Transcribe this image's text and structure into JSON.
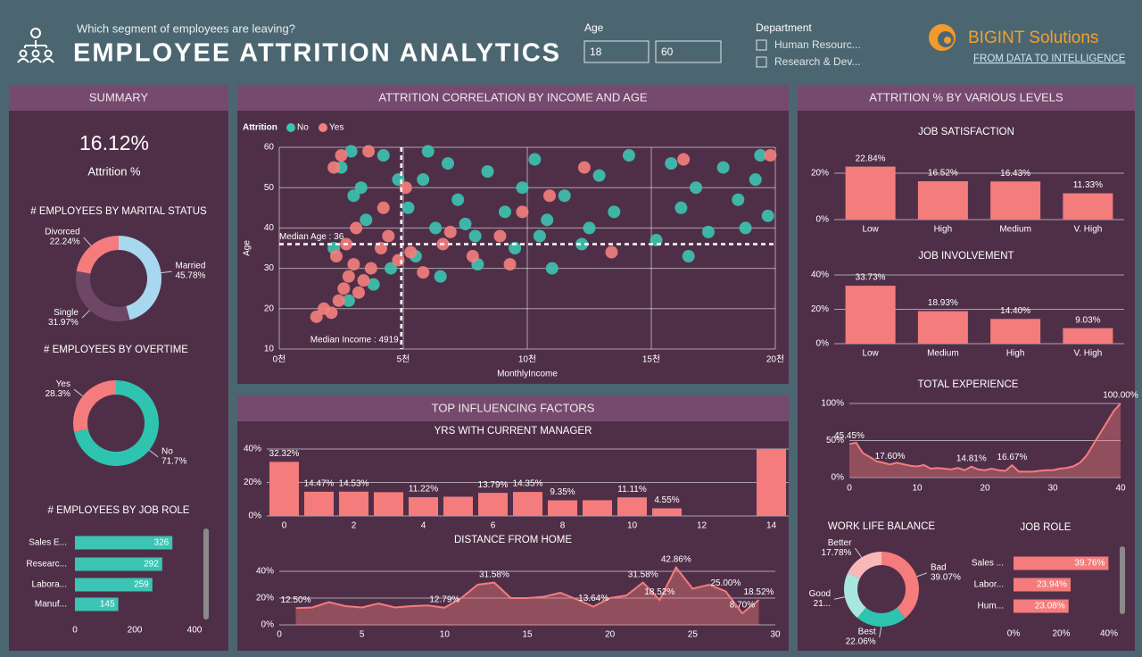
{
  "header": {
    "subtitle": "Which segment of employees are leaving?",
    "title": "EMPLOYEE ATTRITION ANALYTICS"
  },
  "filters": {
    "age": {
      "label": "Age",
      "min": 18,
      "max": 60
    },
    "department": {
      "label": "Department",
      "options": [
        "Human Resourc...",
        "Research & Dev..."
      ]
    }
  },
  "logo": {
    "name": "BIGINT Solutions",
    "tagline": "FROM DATA TO INTELLIGENCE"
  },
  "panels": {
    "summary": "SUMMARY",
    "correlation": "ATTRITION CORRELATION BY INCOME AND AGE",
    "factors": "TOP INFLUENCING FACTORS",
    "levels": "ATTRITION % BY VARIOUS LEVELS"
  },
  "kpi": {
    "value": "16.12%",
    "label": "Attrition %"
  },
  "chart_data": [
    {
      "type": "donut",
      "title": "# EMPLOYEES BY MARITAL STATUS",
      "categories": [
        "Married",
        "Single",
        "Divorced"
      ],
      "values": [
        45.78,
        31.97,
        22.24
      ],
      "value_labels": [
        "45.78%",
        "31.97%",
        "22.24%"
      ],
      "colors": [
        "#a8d8f0",
        "#6e4766",
        "#f47c7c"
      ]
    },
    {
      "type": "donut",
      "title": "# EMPLOYEES BY OVERTIME",
      "categories": [
        "No",
        "Yes"
      ],
      "values": [
        71.7,
        28.3
      ],
      "value_labels": [
        "71.7%",
        "28.3%"
      ],
      "colors": [
        "#2ec4b0",
        "#f47c7c"
      ]
    },
    {
      "type": "hbar",
      "title": "# EMPLOYEES BY JOB ROLE",
      "categories": [
        "Sales E...",
        "Researc...",
        "Labora...",
        "Manuf..."
      ],
      "values": [
        326,
        292,
        259,
        145
      ],
      "color": "#3cc4b4",
      "xlim": [
        0,
        400
      ],
      "xticks": [
        0,
        200,
        400
      ]
    },
    {
      "type": "scatter",
      "title": "Attrition",
      "x_label": "MonthlyIncome",
      "y_label": "Age",
      "xlim": [
        0,
        20000
      ],
      "ylim": [
        10,
        60
      ],
      "xticks": [
        {
          "value": 0,
          "label": "0천"
        },
        {
          "value": 5000,
          "label": "5천"
        },
        {
          "value": 10000,
          "label": "10천"
        },
        {
          "value": 15000,
          "label": "15천"
        },
        {
          "value": 20000,
          "label": "20천"
        }
      ],
      "yticks": [
        10,
        20,
        30,
        40,
        50,
        60
      ],
      "grid": true,
      "reference_lines": [
        {
          "axis": "y",
          "value": 36,
          "label": "Median Age : 36"
        },
        {
          "axis": "x",
          "value": 4919,
          "label": "Median Income : 4919"
        }
      ],
      "series": [
        {
          "name": "No",
          "color": "#3cc4b0",
          "x": [
            2500,
            3000,
            3500,
            4200,
            5200,
            5800,
            6300,
            6800,
            7200,
            7900,
            8400,
            9100,
            9800,
            10300,
            10800,
            11500,
            12200,
            12900,
            13500,
            14100,
            16200,
            16800,
            17300,
            17900,
            18500,
            19200,
            19700,
            19400,
            4500,
            5500,
            6500,
            3800,
            2800,
            2200,
            8000,
            9500,
            10500,
            12500,
            11000,
            7500,
            16500,
            15200,
            18800,
            3300,
            4800,
            6000,
            2900,
            15800
          ],
          "values": [
            55,
            48,
            42,
            58,
            45,
            52,
            40,
            56,
            47,
            38,
            54,
            44,
            50,
            57,
            42,
            48,
            36,
            53,
            44,
            58,
            45,
            50,
            39,
            55,
            47,
            52,
            43,
            58,
            30,
            33,
            28,
            26,
            22,
            35,
            31,
            35,
            38,
            40,
            30,
            41,
            33,
            37,
            40,
            50,
            52,
            59,
            59,
            56
          ]
        },
        {
          "name": "Yes",
          "color": "#f4807c",
          "x": [
            2100,
            2400,
            2600,
            2800,
            3000,
            3200,
            1800,
            2300,
            2700,
            3100,
            3400,
            3700,
            4100,
            4400,
            4800,
            5300,
            5800,
            6600,
            7800,
            8900,
            9800,
            10900,
            12300,
            13400,
            16300,
            19800,
            2200,
            2500,
            3600,
            4200,
            5100,
            6900,
            9300,
            1500
          ],
          "values": [
            19,
            22,
            25,
            28,
            31,
            24,
            20,
            33,
            36,
            40,
            27,
            30,
            35,
            38,
            32,
            34,
            29,
            36,
            33,
            38,
            44,
            48,
            55,
            34,
            57,
            58,
            55,
            58,
            59,
            45,
            50,
            39,
            31,
            18
          ]
        }
      ]
    },
    {
      "type": "bar",
      "title": "YRS WITH CURRENT MANAGER",
      "x": [
        0,
        1,
        2,
        3,
        4,
        5,
        6,
        7,
        8,
        9,
        10,
        11,
        14
      ],
      "values": [
        32.32,
        14.47,
        14.53,
        14.2,
        11.22,
        11.5,
        13.79,
        14.35,
        9.35,
        9.4,
        11.11,
        4.55,
        40
      ],
      "value_labels": [
        "32.32%",
        "14.47%",
        "14.53%",
        null,
        "11.22%",
        null,
        "13.79%",
        "14.35%",
        "9.35%",
        null,
        "11.11%",
        "4.55%",
        null
      ],
      "color": "#f47c7c",
      "xlim": [
        -0.5,
        14.5
      ],
      "xticks": [
        0,
        2,
        4,
        6,
        8,
        10,
        12,
        14
      ],
      "ylim": [
        0,
        40
      ],
      "yticks": [
        {
          "value": 0,
          "label": "0%"
        },
        {
          "value": 20,
          "label": "20%"
        },
        {
          "value": 40,
          "label": "40%"
        }
      ]
    },
    {
      "type": "area",
      "title": "DISTANCE FROM HOME",
      "x": [
        1,
        2,
        3,
        4,
        5,
        6,
        7,
        8,
        9,
        10,
        11,
        12,
        13,
        14,
        15,
        16,
        17,
        18,
        19,
        20,
        21,
        22,
        23,
        24,
        25,
        26,
        27,
        28,
        29
      ],
      "values": [
        12.5,
        13,
        17,
        14,
        13,
        16,
        13,
        14,
        14.5,
        12.79,
        20,
        30,
        31.58,
        20,
        20,
        21,
        24,
        19,
        13.64,
        20,
        22,
        31.58,
        18.52,
        42.86,
        27,
        30,
        25,
        8.7,
        18.52
      ],
      "value_labels": [
        "12.50%",
        null,
        null,
        null,
        null,
        null,
        null,
        null,
        null,
        "12.79%",
        null,
        null,
        "31.58%",
        null,
        null,
        null,
        null,
        null,
        "13.64%",
        null,
        null,
        "31.58%",
        "18.52%",
        "42.86%",
        null,
        null,
        "25.00%",
        "8.70%",
        "18.52%"
      ],
      "color": "#f47c7c",
      "xlim": [
        0,
        30
      ],
      "xticks": [
        0,
        5,
        10,
        15,
        20,
        25,
        30
      ],
      "ylim": [
        0,
        45
      ],
      "yticks": [
        {
          "value": 0,
          "label": "0%"
        },
        {
          "value": 20,
          "label": "20%"
        },
        {
          "value": 40,
          "label": "40%"
        }
      ]
    },
    {
      "type": "bar",
      "title": "JOB SATISFACTION",
      "categories": [
        "Low",
        "High",
        "Medium",
        "V. High"
      ],
      "values": [
        22.84,
        16.52,
        16.43,
        11.33
      ],
      "value_labels": [
        "22.84%",
        "16.52%",
        "16.43%",
        "11.33%"
      ],
      "color": "#f47c7c",
      "ylim": [
        0,
        25
      ],
      "yticks": [
        {
          "value": 0,
          "label": "0%"
        },
        {
          "value": 20,
          "label": "20%"
        }
      ]
    },
    {
      "type": "bar",
      "title": "JOB INVOLVEMENT",
      "categories": [
        "Low",
        "Medium",
        "High",
        "V. High"
      ],
      "values": [
        33.73,
        18.93,
        14.4,
        9.03
      ],
      "value_labels": [
        "33.73%",
        "18.93%",
        "14.40%",
        "9.03%"
      ],
      "color": "#f47c7c",
      "ylim": [
        0,
        40
      ],
      "yticks": [
        {
          "value": 0,
          "label": "0%"
        },
        {
          "value": 20,
          "label": "20%"
        },
        {
          "value": 40,
          "label": "40%"
        }
      ]
    },
    {
      "type": "area",
      "title": "TOTAL EXPERIENCE",
      "x": [
        0,
        1,
        2,
        3,
        4,
        5,
        6,
        7,
        8,
        9,
        10,
        11,
        12,
        13,
        14,
        15,
        16,
        17,
        18,
        19,
        20,
        21,
        22,
        23,
        24,
        25,
        26,
        27,
        28,
        29,
        30,
        31,
        32,
        33,
        34,
        35,
        36,
        37,
        38,
        39,
        40
      ],
      "values": [
        45.45,
        47,
        33,
        28,
        22,
        20,
        17.6,
        20,
        18,
        16,
        15,
        17,
        12,
        13,
        12,
        11,
        13,
        10,
        14.81,
        11,
        10,
        12,
        10,
        9,
        16.67,
        8,
        8,
        8,
        9,
        10,
        10,
        12,
        13,
        15,
        20,
        30,
        45,
        60,
        75,
        90,
        100
      ],
      "value_labels": [
        "45.45%",
        null,
        null,
        null,
        null,
        null,
        "17.60%",
        null,
        null,
        null,
        null,
        null,
        null,
        null,
        null,
        null,
        null,
        null,
        "14.81%",
        null,
        null,
        null,
        null,
        null,
        "16.67%",
        null,
        null,
        null,
        null,
        null,
        null,
        null,
        null,
        null,
        null,
        null,
        null,
        null,
        null,
        null,
        "100.00%"
      ],
      "color": "#f47c7c",
      "xlim": [
        0,
        40
      ],
      "xticks": [
        0,
        10,
        20,
        30,
        40
      ],
      "ylim": [
        0,
        100
      ],
      "yticks": [
        {
          "value": 0,
          "label": "0%"
        },
        {
          "value": 50,
          "label": "50%"
        },
        {
          "value": 100,
          "label": "100%"
        }
      ]
    },
    {
      "type": "donut",
      "title": "WORK LIFE BALANCE",
      "categories": [
        "Bad",
        "Best",
        "Good",
        "Better"
      ],
      "values": [
        39.07,
        22.06,
        21.09,
        17.78
      ],
      "value_labels": [
        "39.07%",
        "22.06%",
        "21...",
        "17.78%"
      ],
      "colors": [
        "#f47c7c",
        "#2ec4b0",
        "#a8e6de",
        "#f9b8b8"
      ]
    },
    {
      "type": "hbar",
      "title": "JOB ROLE",
      "categories": [
        "Sales ...",
        "Labor...",
        "Hum..."
      ],
      "values": [
        39.76,
        23.94,
        23.08
      ],
      "value_labels": [
        "39.76%",
        "23.94%",
        "23.08%"
      ],
      "color": "#f47c7c",
      "xlim": [
        0,
        40
      ],
      "xticks": [
        {
          "value": 0,
          "label": "0%"
        },
        {
          "value": 20,
          "label": "20%"
        },
        {
          "value": 40,
          "label": "40%"
        }
      ]
    }
  ]
}
